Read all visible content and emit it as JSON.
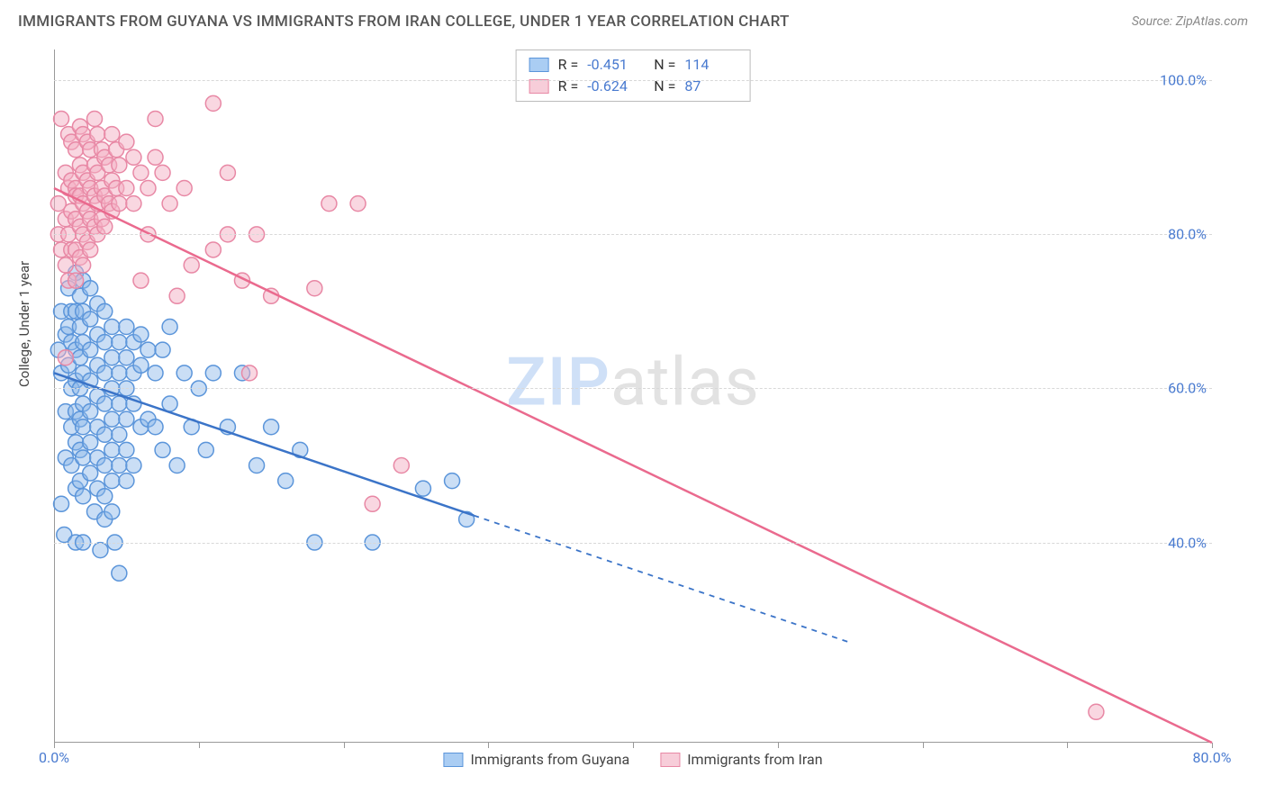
{
  "title": "IMMIGRANTS FROM GUYANA VS IMMIGRANTS FROM IRAN COLLEGE, UNDER 1 YEAR CORRELATION CHART",
  "source": "Source: ZipAtlas.com",
  "ylabel": "College, Under 1 year",
  "watermark": {
    "a": "ZIP",
    "b": "atlas"
  },
  "chart": {
    "type": "scatter+regression",
    "background_color": "#ffffff",
    "grid_color": "#d8d8d8",
    "axis_color": "#999999",
    "tick_label_color": "#4a7bd0",
    "xlim": [
      0,
      80
    ],
    "ylim": [
      14,
      104
    ],
    "y_ticks": [
      40,
      60,
      80,
      100
    ],
    "y_tick_labels": [
      "40.0%",
      "60.0%",
      "80.0%",
      "100.0%"
    ],
    "x_ticks": [
      0,
      10,
      20,
      30,
      40,
      50,
      60,
      70,
      80
    ],
    "x_tick_labels_visible": {
      "0": "0.0%",
      "80": "80.0%"
    },
    "top_legend": [
      {
        "swatch_fill": "#aacdf3",
        "swatch_stroke": "#5b95da",
        "r": "-0.451",
        "n": "114"
      },
      {
        "swatch_fill": "#f7cdd9",
        "swatch_stroke": "#e888a5",
        "r": "-0.624",
        "n": "87"
      }
    ],
    "bottom_legend": [
      {
        "swatch_fill": "#aacdf3",
        "swatch_stroke": "#5b95da",
        "label": "Immigrants from Guyana"
      },
      {
        "swatch_fill": "#f7cdd9",
        "swatch_stroke": "#e888a5",
        "label": "Immigrants from Iran"
      }
    ],
    "series": [
      {
        "name": "guyana",
        "marker_fill": "rgba(137,181,233,0.45)",
        "marker_stroke": "#5b95da",
        "marker_r": 8.5,
        "line_color": "#3b74c8",
        "line_width": 2.5,
        "reg_start": [
          0,
          62
        ],
        "reg_solid_end": [
          29,
          43.5
        ],
        "reg_dash_end": [
          55,
          27
        ],
        "points": [
          [
            0.3,
            65
          ],
          [
            0.5,
            62
          ],
          [
            0.5,
            70
          ],
          [
            0.8,
            67
          ],
          [
            0.8,
            57
          ],
          [
            0.8,
            51
          ],
          [
            0.5,
            45
          ],
          [
            0.7,
            41
          ],
          [
            1.0,
            73
          ],
          [
            1.0,
            68
          ],
          [
            1.0,
            63
          ],
          [
            1.2,
            70
          ],
          [
            1.2,
            66
          ],
          [
            1.2,
            60
          ],
          [
            1.2,
            55
          ],
          [
            1.2,
            50
          ],
          [
            1.5,
            75
          ],
          [
            1.5,
            70
          ],
          [
            1.5,
            65
          ],
          [
            1.5,
            61
          ],
          [
            1.5,
            57
          ],
          [
            1.5,
            53
          ],
          [
            1.5,
            47
          ],
          [
            1.5,
            40
          ],
          [
            1.8,
            72
          ],
          [
            1.8,
            68
          ],
          [
            1.8,
            64
          ],
          [
            1.8,
            60
          ],
          [
            1.8,
            56
          ],
          [
            1.8,
            52
          ],
          [
            1.8,
            48
          ],
          [
            2.0,
            74
          ],
          [
            2.0,
            70
          ],
          [
            2.0,
            66
          ],
          [
            2.0,
            62
          ],
          [
            2.0,
            58
          ],
          [
            2.0,
            55
          ],
          [
            2.0,
            51
          ],
          [
            2.0,
            46
          ],
          [
            2.0,
            40
          ],
          [
            2.5,
            73
          ],
          [
            2.5,
            69
          ],
          [
            2.5,
            65
          ],
          [
            2.5,
            61
          ],
          [
            2.5,
            57
          ],
          [
            2.5,
            53
          ],
          [
            2.5,
            49
          ],
          [
            2.8,
            44
          ],
          [
            3.0,
            71
          ],
          [
            3.0,
            67
          ],
          [
            3.0,
            63
          ],
          [
            3.0,
            59
          ],
          [
            3.0,
            55
          ],
          [
            3.0,
            51
          ],
          [
            3.0,
            47
          ],
          [
            3.2,
            39
          ],
          [
            3.5,
            70
          ],
          [
            3.5,
            66
          ],
          [
            3.5,
            62
          ],
          [
            3.5,
            58
          ],
          [
            3.5,
            54
          ],
          [
            3.5,
            50
          ],
          [
            3.5,
            46
          ],
          [
            3.5,
            43
          ],
          [
            4.0,
            68
          ],
          [
            4.0,
            64
          ],
          [
            4.0,
            60
          ],
          [
            4.0,
            56
          ],
          [
            4.0,
            52
          ],
          [
            4.0,
            48
          ],
          [
            4.0,
            44
          ],
          [
            4.2,
            40
          ],
          [
            4.5,
            36
          ],
          [
            4.5,
            66
          ],
          [
            4.5,
            62
          ],
          [
            4.5,
            58
          ],
          [
            4.5,
            54
          ],
          [
            4.5,
            50
          ],
          [
            5.0,
            68
          ],
          [
            5.0,
            64
          ],
          [
            5.0,
            60
          ],
          [
            5.0,
            56
          ],
          [
            5.0,
            52
          ],
          [
            5.0,
            48
          ],
          [
            5.5,
            66
          ],
          [
            5.5,
            62
          ],
          [
            5.5,
            58
          ],
          [
            5.5,
            50
          ],
          [
            6.0,
            67
          ],
          [
            6.0,
            63
          ],
          [
            6.0,
            55
          ],
          [
            6.5,
            65
          ],
          [
            6.5,
            56
          ],
          [
            7.0,
            62
          ],
          [
            7.0,
            55
          ],
          [
            7.5,
            65
          ],
          [
            7.5,
            52
          ],
          [
            8.0,
            68
          ],
          [
            8.0,
            58
          ],
          [
            8.5,
            50
          ],
          [
            9.0,
            62
          ],
          [
            9.5,
            55
          ],
          [
            10.0,
            60
          ],
          [
            10.5,
            52
          ],
          [
            11,
            62
          ],
          [
            12,
            55
          ],
          [
            13,
            62
          ],
          [
            14,
            50
          ],
          [
            15,
            55
          ],
          [
            16,
            48
          ],
          [
            17,
            52
          ],
          [
            18,
            40
          ],
          [
            22,
            40
          ],
          [
            25.5,
            47
          ],
          [
            27.5,
            48
          ],
          [
            28.5,
            43
          ]
        ]
      },
      {
        "name": "iran",
        "marker_fill": "rgba(244,176,196,0.5)",
        "marker_stroke": "#e888a5",
        "marker_r": 8.5,
        "line_color": "#ea6a8e",
        "line_width": 2.5,
        "reg_start": [
          0,
          86
        ],
        "reg_solid_end": [
          80,
          14
        ],
        "reg_dash_end": null,
        "points": [
          [
            0.3,
            84
          ],
          [
            0.3,
            80
          ],
          [
            0.5,
            95
          ],
          [
            0.5,
            78
          ],
          [
            0.8,
            88
          ],
          [
            0.8,
            82
          ],
          [
            0.8,
            76
          ],
          [
            0.8,
            64
          ],
          [
            1.0,
            93
          ],
          [
            1.0,
            86
          ],
          [
            1.0,
            80
          ],
          [
            1.0,
            74
          ],
          [
            1.2,
            92
          ],
          [
            1.2,
            87
          ],
          [
            1.2,
            83
          ],
          [
            1.2,
            78
          ],
          [
            1.5,
            91
          ],
          [
            1.5,
            86
          ],
          [
            1.5,
            82
          ],
          [
            1.5,
            78
          ],
          [
            1.5,
            74
          ],
          [
            1.5,
            85
          ],
          [
            1.8,
            94
          ],
          [
            1.8,
            89
          ],
          [
            1.8,
            85
          ],
          [
            1.8,
            81
          ],
          [
            1.8,
            77
          ],
          [
            2.0,
            93
          ],
          [
            2.0,
            88
          ],
          [
            2.0,
            84
          ],
          [
            2.0,
            80
          ],
          [
            2.0,
            76
          ],
          [
            2.3,
            92
          ],
          [
            2.3,
            87
          ],
          [
            2.3,
            83
          ],
          [
            2.3,
            79
          ],
          [
            2.5,
            91
          ],
          [
            2.5,
            86
          ],
          [
            2.5,
            82
          ],
          [
            2.5,
            78
          ],
          [
            2.8,
            95
          ],
          [
            2.8,
            89
          ],
          [
            2.8,
            85
          ],
          [
            2.8,
            81
          ],
          [
            3.0,
            93
          ],
          [
            3.0,
            88
          ],
          [
            3.0,
            84
          ],
          [
            3.0,
            80
          ],
          [
            3.3,
            91
          ],
          [
            3.3,
            86
          ],
          [
            3.3,
            82
          ],
          [
            3.5,
            90
          ],
          [
            3.5,
            85
          ],
          [
            3.5,
            81
          ],
          [
            3.8,
            89
          ],
          [
            3.8,
            84
          ],
          [
            4.0,
            93
          ],
          [
            4.0,
            87
          ],
          [
            4.0,
            83
          ],
          [
            4.3,
            91
          ],
          [
            4.3,
            86
          ],
          [
            4.5,
            89
          ],
          [
            4.5,
            84
          ],
          [
            5.0,
            92
          ],
          [
            5.0,
            86
          ],
          [
            5.5,
            90
          ],
          [
            5.5,
            84
          ],
          [
            6.0,
            88
          ],
          [
            6.0,
            74
          ],
          [
            6.5,
            86
          ],
          [
            6.5,
            80
          ],
          [
            7.0,
            90
          ],
          [
            7.5,
            88
          ],
          [
            8.0,
            84
          ],
          [
            8.5,
            72
          ],
          [
            9.0,
            86
          ],
          [
            9.5,
            76
          ],
          [
            7,
            95
          ],
          [
            11,
            97
          ],
          [
            11,
            78
          ],
          [
            12,
            88
          ],
          [
            12,
            80
          ],
          [
            13,
            74
          ],
          [
            13.5,
            62
          ],
          [
            14,
            80
          ],
          [
            15,
            72
          ],
          [
            18,
            73
          ],
          [
            19,
            84
          ],
          [
            21,
            84
          ],
          [
            22,
            45
          ],
          [
            24,
            50
          ],
          [
            72,
            18
          ]
        ]
      }
    ]
  }
}
